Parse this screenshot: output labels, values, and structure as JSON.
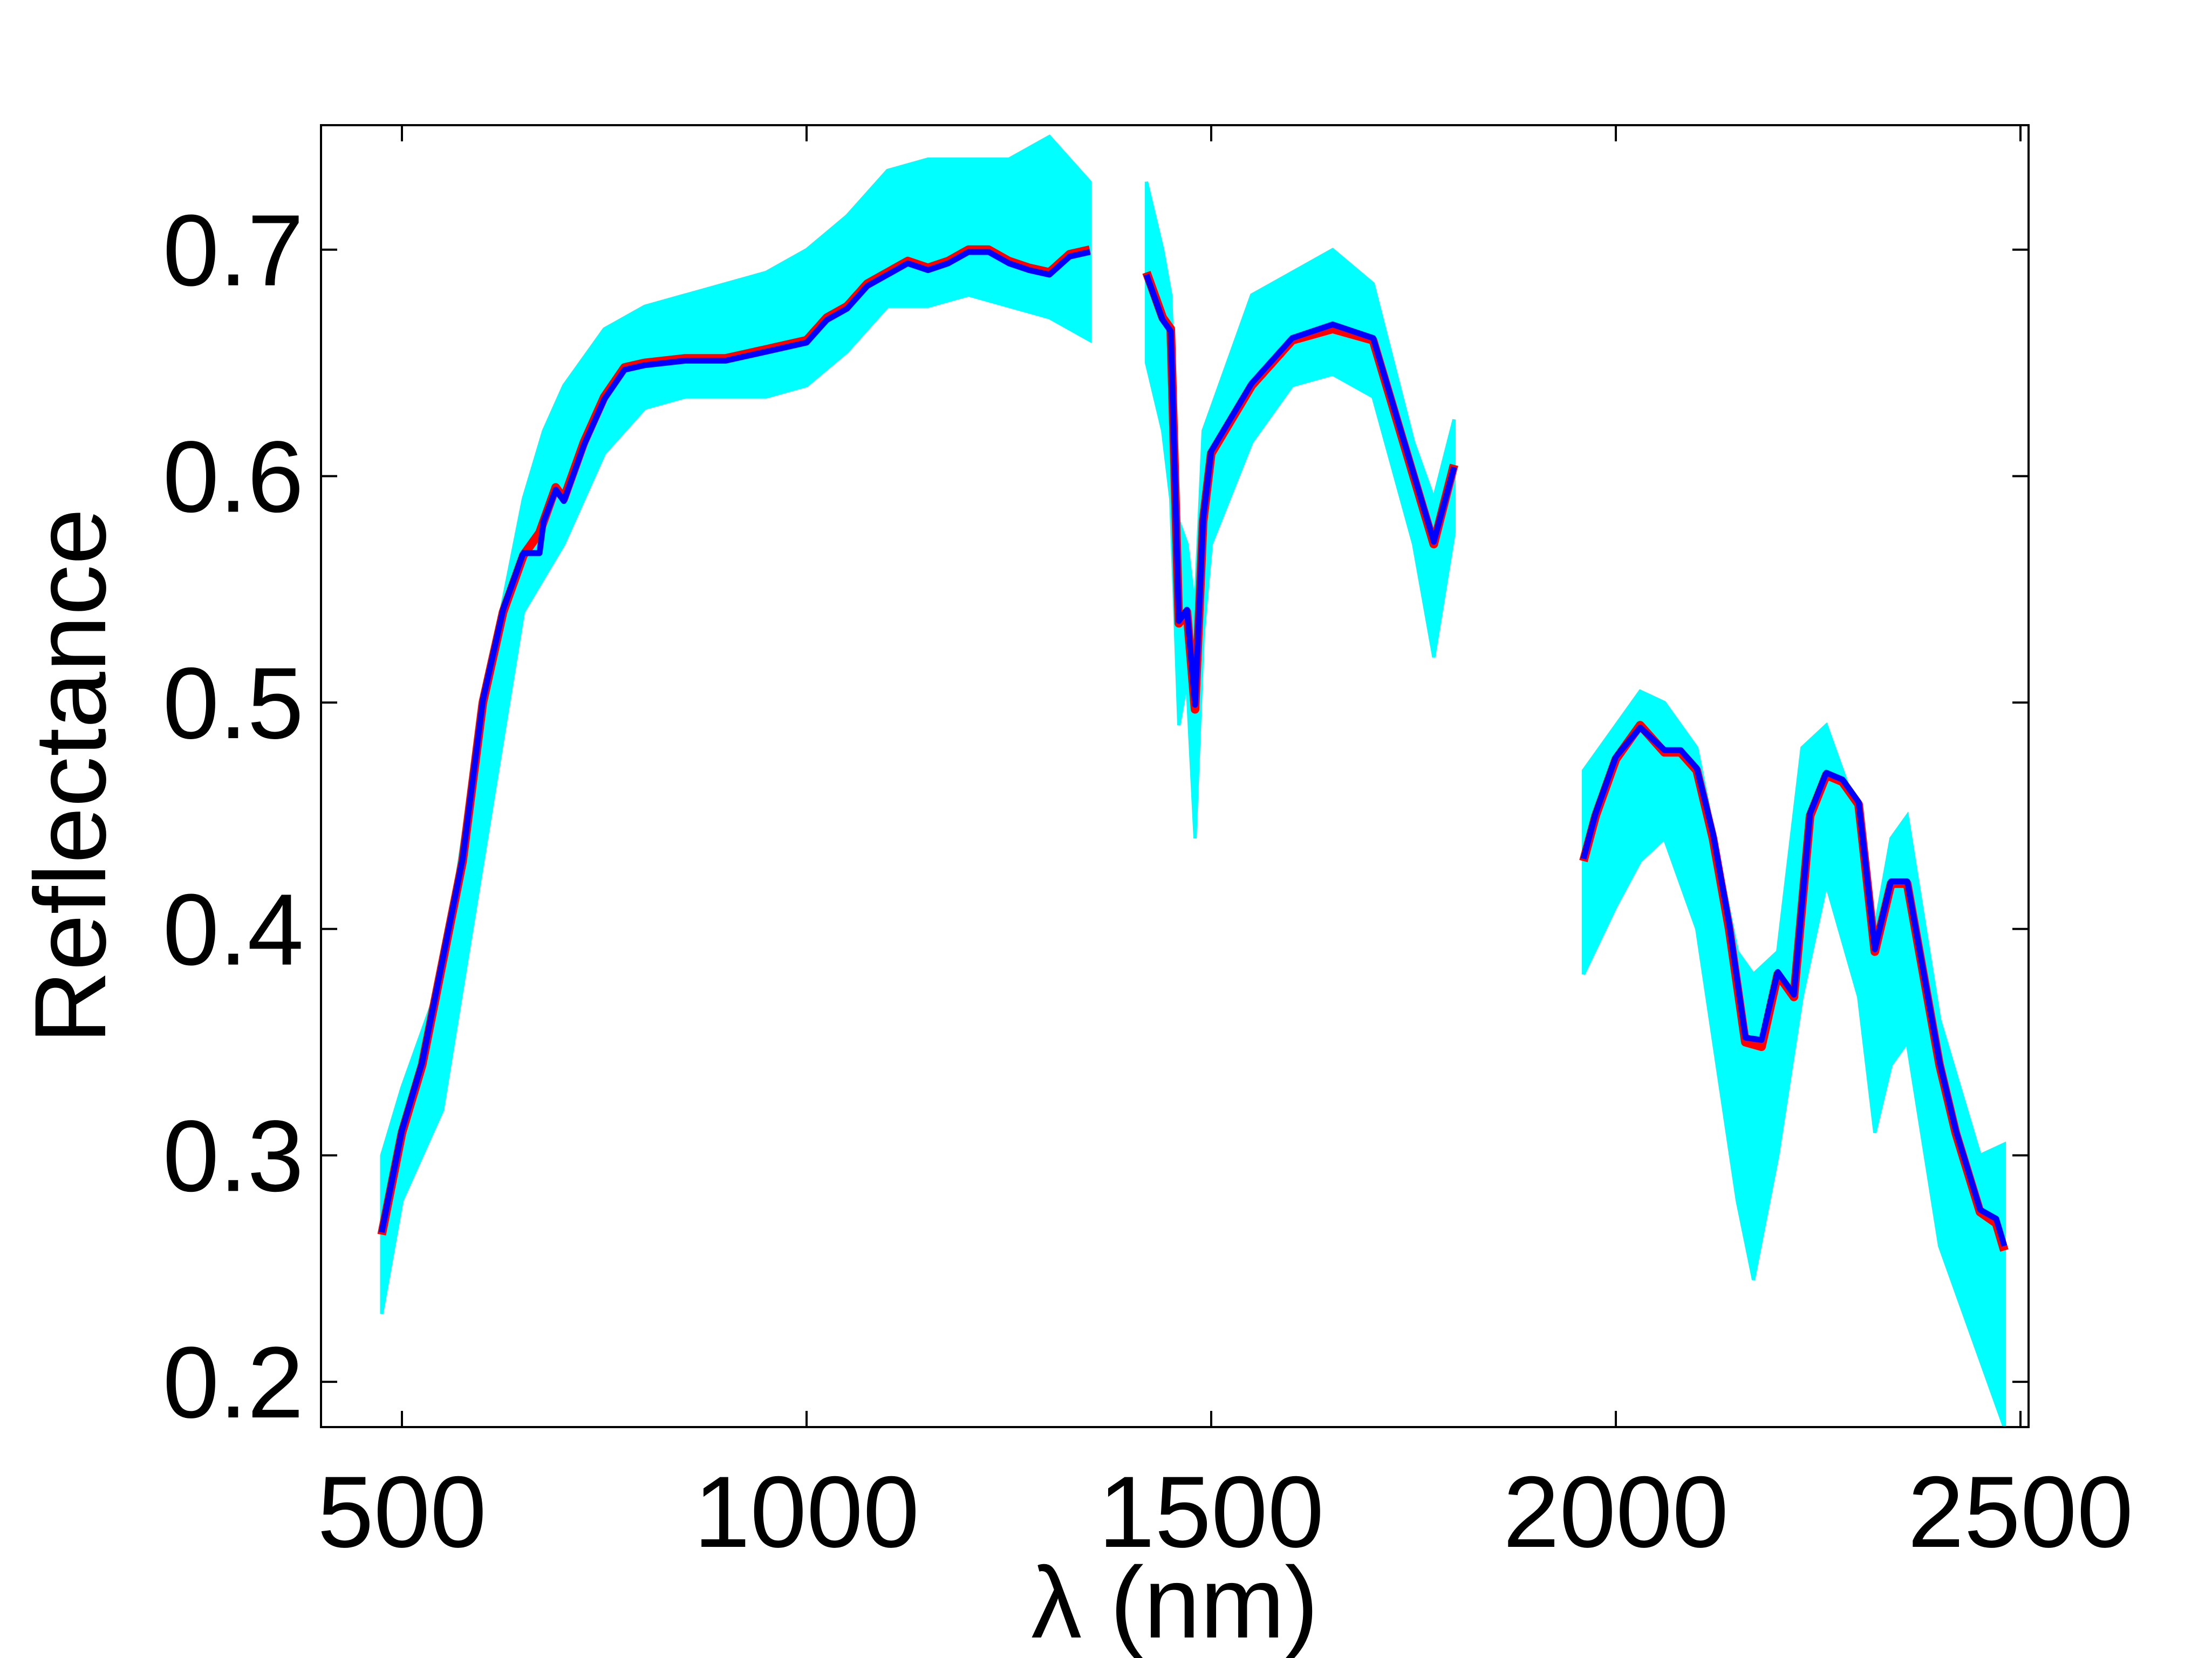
{
  "chart_data": {
    "type": "line",
    "title": "",
    "xlabel": "λ (nm)",
    "ylabel": "Reflectance",
    "xlim": [
      400,
      2510
    ],
    "ylim": [
      0.18,
      0.755
    ],
    "xticks": [
      500,
      1000,
      1500,
      2000,
      2500
    ],
    "xtick_labels": [
      "500",
      "1000",
      "1500",
      "2000",
      "2500"
    ],
    "yticks": [
      0.2,
      0.3,
      0.4,
      0.5,
      0.6,
      0.7
    ],
    "ytick_labels": [
      "0.2",
      "0.3",
      "0.4",
      "0.5",
      "0.6",
      "0.7"
    ],
    "grid": false,
    "colors": {
      "band": "#00ffff",
      "mean": "#0000ff",
      "reference": "#ff0000",
      "axes": "#000000",
      "background": "#ffffff"
    },
    "band_series": {
      "segments": [
        {
          "x": [
            475,
            500,
            550,
            600,
            650,
            675,
            700,
            750,
            800,
            850,
            900,
            950,
            1000,
            1050,
            1100,
            1150,
            1200,
            1250,
            1300,
            1350
          ],
          "lo": [
            0.23,
            0.28,
            0.32,
            0.43,
            0.54,
            0.555,
            0.57,
            0.61,
            0.63,
            0.635,
            0.635,
            0.635,
            0.64,
            0.655,
            0.675,
            0.675,
            0.68,
            0.675,
            0.67,
            0.66
          ],
          "hi": [
            0.3,
            0.33,
            0.38,
            0.5,
            0.59,
            0.62,
            0.64,
            0.665,
            0.675,
            0.68,
            0.685,
            0.69,
            0.7,
            0.715,
            0.735,
            0.74,
            0.74,
            0.74,
            0.75,
            0.73
          ]
        },
        {
          "x": [
            1420,
            1440,
            1450,
            1460,
            1470,
            1480,
            1490,
            1500,
            1550,
            1600,
            1650,
            1700,
            1750,
            1775,
            1800
          ],
          "lo": [
            0.65,
            0.62,
            0.59,
            0.49,
            0.51,
            0.44,
            0.53,
            0.57,
            0.615,
            0.64,
            0.645,
            0.635,
            0.57,
            0.52,
            0.575
          ],
          "hi": [
            0.73,
            0.7,
            0.68,
            0.58,
            0.57,
            0.54,
            0.62,
            0.63,
            0.68,
            0.69,
            0.7,
            0.685,
            0.615,
            0.59,
            0.625
          ]
        },
        {
          "x": [
            1960,
            2000,
            2030,
            2060,
            2100,
            2150,
            2170,
            2200,
            2230,
            2260,
            2300,
            2320,
            2340,
            2360,
            2400,
            2450,
            2480
          ],
          "lo": [
            0.38,
            0.41,
            0.43,
            0.44,
            0.4,
            0.28,
            0.245,
            0.3,
            0.37,
            0.42,
            0.37,
            0.31,
            0.34,
            0.35,
            0.26,
            0.21,
            0.18
          ],
          "hi": [
            0.47,
            0.49,
            0.505,
            0.5,
            0.48,
            0.39,
            0.38,
            0.39,
            0.48,
            0.49,
            0.45,
            0.4,
            0.44,
            0.45,
            0.36,
            0.3,
            0.305
          ]
        }
      ]
    },
    "series": [
      {
        "color": "#ff0000",
        "segments": [
          {
            "x": [
              475,
              500,
              525,
              550,
              575,
              600,
              625,
              650,
              670,
              675,
              690,
              700,
              725,
              750,
              775,
              800,
              850,
              900,
              950,
              1000,
              1025,
              1050,
              1075,
              1100,
              1125,
              1150,
              1175,
              1200,
              1225,
              1250,
              1275,
              1300,
              1325,
              1350
            ],
            "y": [
              0.265,
              0.31,
              0.34,
              0.385,
              0.43,
              0.5,
              0.54,
              0.565,
              0.575,
              0.58,
              0.595,
              0.59,
              0.615,
              0.635,
              0.648,
              0.65,
              0.652,
              0.652,
              0.656,
              0.66,
              0.67,
              0.675,
              0.685,
              0.69,
              0.695,
              0.692,
              0.695,
              0.7,
              0.7,
              0.695,
              0.692,
              0.69,
              0.698,
              0.7
            ]
          },
          {
            "x": [
              1420,
              1440,
              1450,
              1460,
              1470,
              1480,
              1490,
              1500,
              1550,
              1600,
              1650,
              1700,
              1750,
              1775,
              1800
            ],
            "y": [
              0.69,
              0.67,
              0.665,
              0.535,
              0.54,
              0.497,
              0.58,
              0.61,
              0.64,
              0.66,
              0.665,
              0.66,
              0.6,
              0.57,
              0.605
            ]
          },
          {
            "x": [
              1960,
              1975,
              2000,
              2030,
              2060,
              2080,
              2100,
              2120,
              2140,
              2160,
              2180,
              2200,
              2220,
              2240,
              2260,
              2280,
              2300,
              2320,
              2340,
              2360,
              2380,
              2400,
              2420,
              2450,
              2470,
              2480
            ],
            "y": [
              0.43,
              0.45,
              0.475,
              0.49,
              0.478,
              0.478,
              0.47,
              0.44,
              0.4,
              0.35,
              0.348,
              0.38,
              0.37,
              0.45,
              0.468,
              0.465,
              0.455,
              0.39,
              0.42,
              0.42,
              0.38,
              0.34,
              0.31,
              0.275,
              0.27,
              0.258
            ]
          }
        ]
      },
      {
        "color": "#0000ff",
        "segments": [
          {
            "x": [
              475,
              500,
              525,
              550,
              575,
              600,
              625,
              650,
              670,
              675,
              690,
              700,
              725,
              750,
              775,
              800,
              850,
              900,
              950,
              1000,
              1025,
              1050,
              1075,
              1100,
              1125,
              1150,
              1175,
              1200,
              1225,
              1250,
              1275,
              1300,
              1325,
              1350
            ],
            "y": [
              0.266,
              0.311,
              0.341,
              0.386,
              0.431,
              0.501,
              0.541,
              0.566,
              0.566,
              0.58,
              0.594,
              0.589,
              0.614,
              0.634,
              0.647,
              0.649,
              0.651,
              0.651,
              0.655,
              0.659,
              0.669,
              0.674,
              0.684,
              0.689,
              0.694,
              0.691,
              0.694,
              0.699,
              0.699,
              0.694,
              0.691,
              0.689,
              0.697,
              0.699
            ]
          },
          {
            "x": [
              1420,
              1440,
              1450,
              1460,
              1470,
              1480,
              1490,
              1500,
              1550,
              1600,
              1650,
              1700,
              1750,
              1775,
              1800
            ],
            "y": [
              0.689,
              0.669,
              0.664,
              0.536,
              0.541,
              0.499,
              0.581,
              0.611,
              0.641,
              0.661,
              0.667,
              0.661,
              0.601,
              0.571,
              0.604
            ]
          },
          {
            "x": [
              1960,
              1975,
              2000,
              2030,
              2060,
              2080,
              2100,
              2120,
              2140,
              2160,
              2180,
              2200,
              2220,
              2240,
              2260,
              2280,
              2300,
              2320,
              2340,
              2360,
              2380,
              2400,
              2420,
              2450,
              2470,
              2480
            ],
            "y": [
              0.431,
              0.451,
              0.476,
              0.489,
              0.479,
              0.479,
              0.471,
              0.442,
              0.402,
              0.352,
              0.351,
              0.381,
              0.371,
              0.451,
              0.469,
              0.466,
              0.456,
              0.391,
              0.421,
              0.421,
              0.381,
              0.341,
              0.311,
              0.276,
              0.272,
              0.26
            ]
          }
        ]
      }
    ]
  }
}
